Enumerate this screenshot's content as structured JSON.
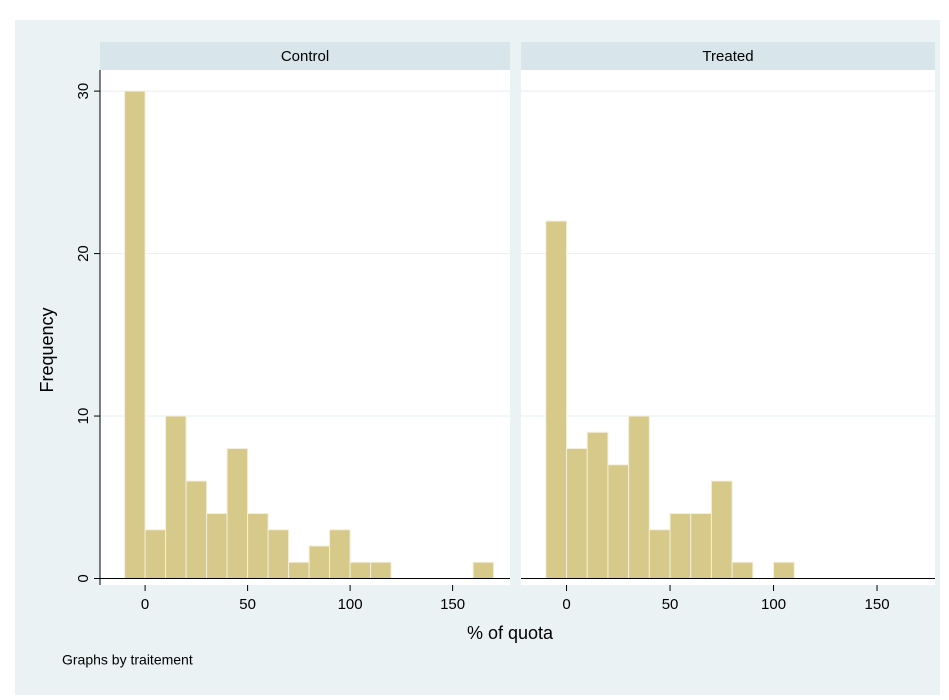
{
  "chart_data": {
    "type": "histogram",
    "xlabel": "% of quota",
    "ylabel": "Frequency",
    "note": "Graphs by traitement",
    "color": "#d6c98a",
    "xlim": [
      -22,
      178
    ],
    "xticks": [
      0,
      50,
      100,
      150
    ],
    "ylim": [
      -0.4,
      31.3
    ],
    "yticks": [
      0,
      10,
      20,
      30
    ],
    "grid": true,
    "panels": [
      {
        "title": "Control",
        "bins": [
          -10,
          0,
          10,
          20,
          30,
          40,
          50,
          60,
          70,
          80,
          90,
          100,
          110,
          120,
          130,
          140,
          150,
          160,
          170
        ],
        "counts": [
          30,
          3,
          10,
          6,
          4,
          8,
          4,
          3,
          1,
          2,
          3,
          1,
          1,
          0,
          0,
          0,
          0,
          1
        ]
      },
      {
        "title": "Treated",
        "bins": [
          -10,
          0,
          10,
          20,
          30,
          40,
          50,
          60,
          70,
          80,
          90,
          100,
          110
        ],
        "counts": [
          22,
          8,
          9,
          7,
          10,
          3,
          4,
          4,
          6,
          1,
          0,
          1
        ]
      }
    ]
  }
}
